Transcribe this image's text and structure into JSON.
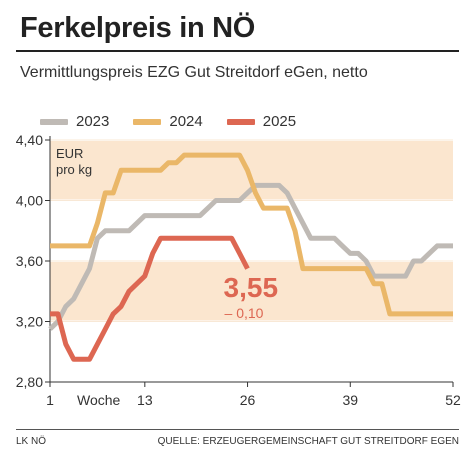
{
  "title": "Ferkelpreis in NÖ",
  "subtitle": "Vermittlungspreis EZG Gut Streitdorf eGen, netto",
  "footer": {
    "left": "LK NÖ",
    "right": "QUELLE: ERZEUGERGEMEINSCHAFT GUT STREITDORF EGEN"
  },
  "chart_data": {
    "type": "line",
    "title": "Ferkelpreis in NÖ",
    "subtitle": "Vermittlungspreis EZG Gut Streitdorf eGen, netto",
    "unit_label": [
      "EUR",
      "pro kg"
    ],
    "xlabel": "Woche",
    "x_ticks": [
      "1",
      "13",
      "26",
      "39",
      "52"
    ],
    "x_tick_values": [
      1,
      13,
      26,
      39,
      52
    ],
    "xlim": [
      1,
      52
    ],
    "y_ticks": [
      "2,80",
      "3,20",
      "3,60",
      "4,00",
      "4,40"
    ],
    "y_tick_values": [
      2.8,
      3.2,
      3.6,
      4.0,
      4.4
    ],
    "ylim": [
      2.8,
      4.4
    ],
    "bands": [
      [
        3.2,
        3.6
      ],
      [
        4.0,
        4.4
      ]
    ],
    "grid": true,
    "legend": "top",
    "colors": {
      "band": "#fbe6cf",
      "grid": "#ffffff",
      "axis": "#333333",
      "s2023": "#bfbab5",
      "s2024": "#eab768",
      "s2025": "#dd6752"
    },
    "series": [
      {
        "name": "2023",
        "color": "#bfbab5",
        "x": [
          1,
          2,
          3,
          4,
          5,
          6,
          7,
          8,
          9,
          10,
          11,
          12,
          13,
          14,
          15,
          16,
          17,
          18,
          19,
          20,
          21,
          22,
          23,
          24,
          25,
          26,
          27,
          28,
          29,
          30,
          31,
          32,
          33,
          34,
          35,
          36,
          37,
          38,
          39,
          40,
          41,
          42,
          43,
          44,
          45,
          46,
          47,
          48,
          49,
          50,
          51,
          52
        ],
        "values": [
          3.15,
          3.2,
          3.3,
          3.35,
          3.45,
          3.55,
          3.75,
          3.8,
          3.8,
          3.8,
          3.8,
          3.85,
          3.9,
          3.9,
          3.9,
          3.9,
          3.9,
          3.9,
          3.9,
          3.9,
          3.95,
          4.0,
          4.0,
          4.0,
          4.0,
          4.05,
          4.1,
          4.1,
          4.1,
          4.1,
          4.05,
          3.95,
          3.85,
          3.75,
          3.75,
          3.75,
          3.75,
          3.7,
          3.65,
          3.65,
          3.6,
          3.5,
          3.5,
          3.5,
          3.5,
          3.5,
          3.6,
          3.6,
          3.65,
          3.7,
          3.7,
          3.7
        ]
      },
      {
        "name": "2024",
        "color": "#eab768",
        "x": [
          1,
          2,
          3,
          4,
          5,
          6,
          7,
          8,
          9,
          10,
          11,
          12,
          13,
          14,
          15,
          16,
          17,
          18,
          19,
          20,
          21,
          22,
          23,
          24,
          25,
          26,
          27,
          28,
          29,
          30,
          31,
          32,
          33,
          34,
          35,
          36,
          37,
          38,
          39,
          40,
          41,
          42,
          43,
          44,
          45,
          46,
          47,
          48,
          49,
          50,
          51,
          52
        ],
        "values": [
          3.7,
          3.7,
          3.7,
          3.7,
          3.7,
          3.7,
          3.85,
          4.05,
          4.05,
          4.2,
          4.2,
          4.2,
          4.2,
          4.2,
          4.2,
          4.25,
          4.25,
          4.3,
          4.3,
          4.3,
          4.3,
          4.3,
          4.3,
          4.3,
          4.3,
          4.2,
          4.05,
          3.95,
          3.95,
          3.95,
          3.95,
          3.8,
          3.55,
          3.55,
          3.55,
          3.55,
          3.55,
          3.55,
          3.55,
          3.55,
          3.55,
          3.45,
          3.45,
          3.25,
          3.25,
          3.25,
          3.25,
          3.25,
          3.25,
          3.25,
          3.25,
          3.25
        ]
      },
      {
        "name": "2025",
        "color": "#dd6752",
        "x": [
          1,
          2,
          3,
          4,
          5,
          6,
          7,
          8,
          9,
          10,
          11,
          12,
          13,
          14,
          15,
          16,
          17,
          18,
          19,
          20,
          21,
          22,
          23,
          24,
          25,
          26
        ],
        "values": [
          3.25,
          3.25,
          3.05,
          2.95,
          2.95,
          2.95,
          3.05,
          3.15,
          3.25,
          3.3,
          3.4,
          3.45,
          3.5,
          3.65,
          3.75,
          3.75,
          3.75,
          3.75,
          3.75,
          3.75,
          3.75,
          3.75,
          3.75,
          3.75,
          3.65,
          3.55
        ]
      }
    ],
    "annotation": {
      "value": "3,55",
      "change": "– 0,10"
    }
  }
}
